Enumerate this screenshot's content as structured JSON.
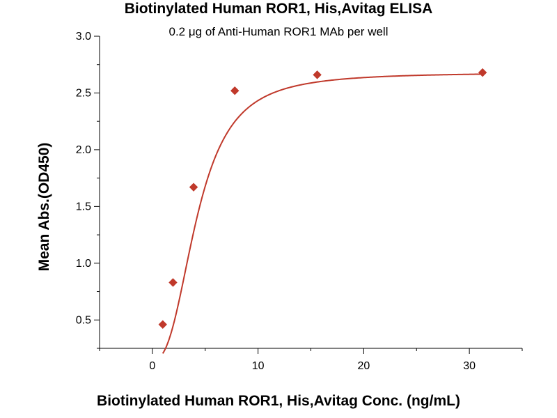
{
  "chart_data": {
    "type": "scatter",
    "title": "Biotinylated Human ROR1, His,Avitag ELISA",
    "subtitle": "0.2 μg of Anti-Human ROR1 MAb per well",
    "xlabel": "Biotinylated Human ROR1, His,Avitag Conc. (ng/mL)",
    "ylabel": "Mean Abs.(OD450)",
    "xlim": [
      -5,
      35
    ],
    "ylim": [
      0.25,
      3.0
    ],
    "xticks": [
      0,
      10,
      20,
      30
    ],
    "yticks": [
      0.5,
      1.0,
      1.5,
      2.0,
      2.5,
      3.0
    ],
    "grid": false,
    "series": [
      {
        "x": [
          0.98,
          1.95,
          3.9,
          7.8,
          15.6,
          31.25
        ],
        "y": [
          0.46,
          0.83,
          1.67,
          2.52,
          2.66,
          2.68
        ],
        "color": "#C0392B",
        "marker": "diamond",
        "fit": "sigmoidal"
      }
    ]
  }
}
